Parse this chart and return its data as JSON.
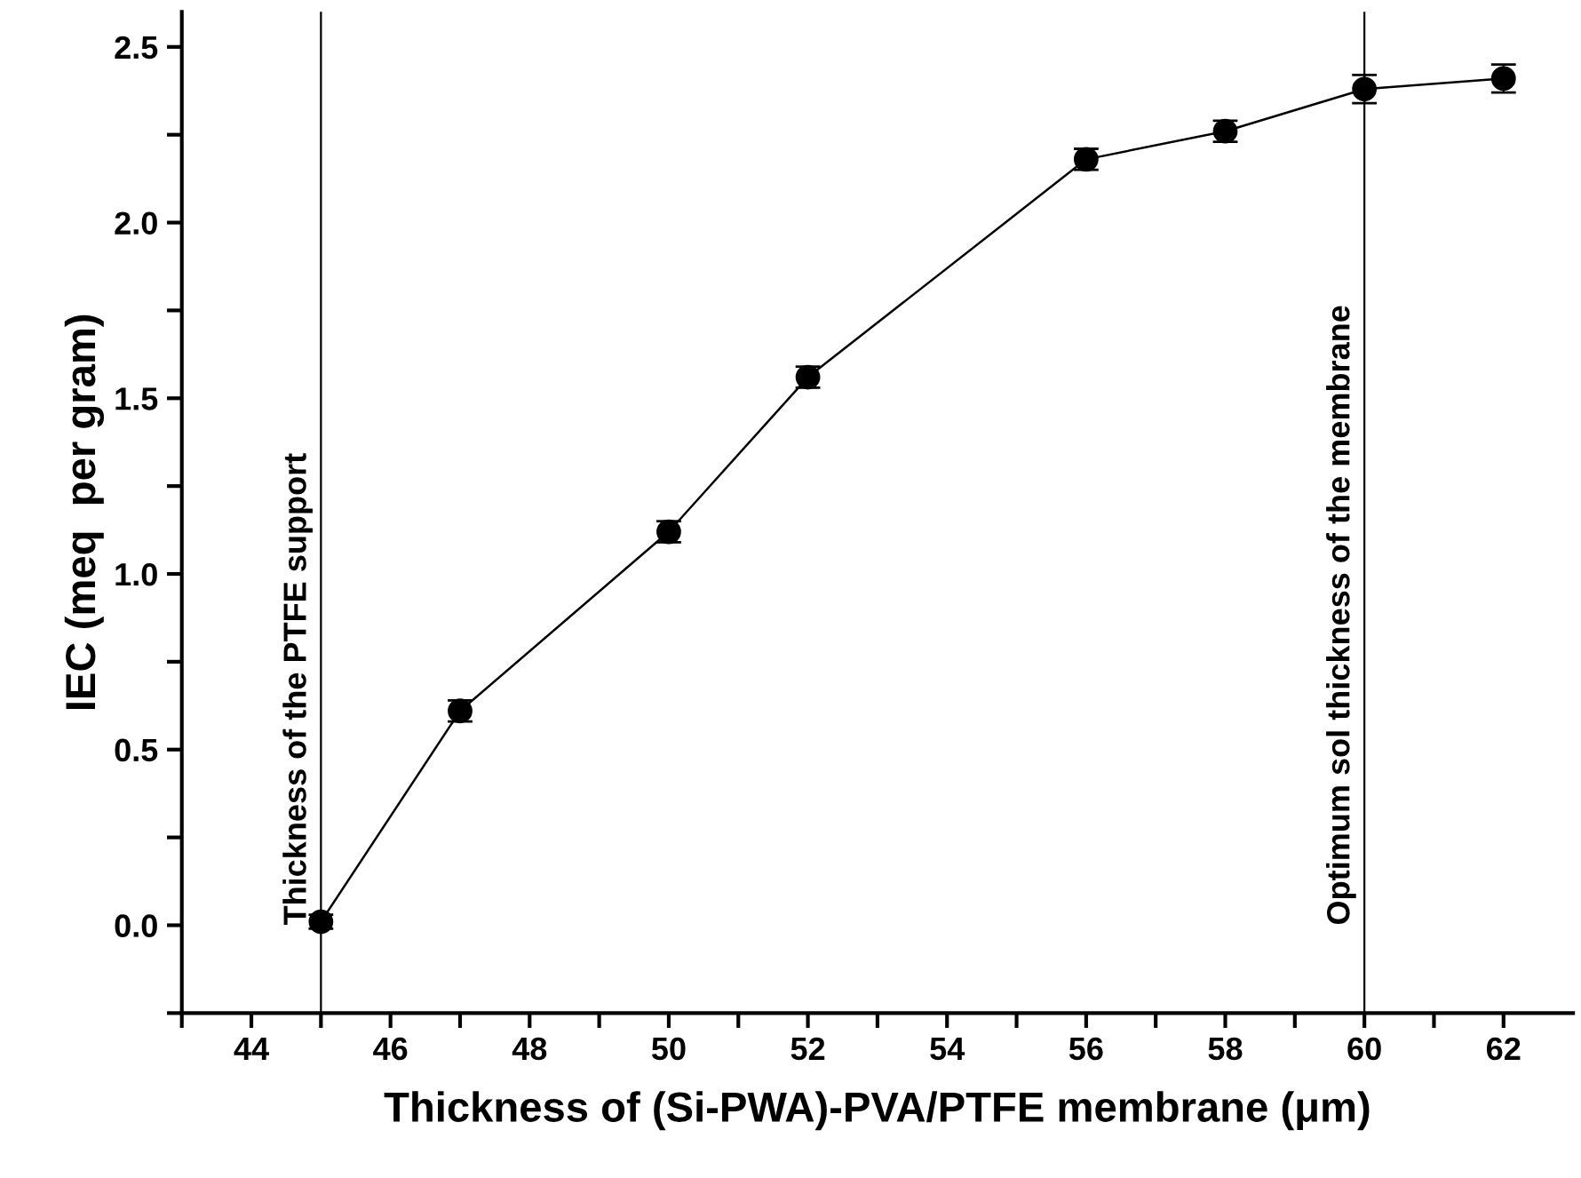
{
  "chart_data": {
    "type": "line",
    "xlabel": "Thickness of (Si-PWA)-PVA/PTFE membrane (μm)",
    "ylabel": "IEC (meq  per gram)",
    "x": [
      45,
      47,
      50,
      52,
      56,
      58,
      60,
      62
    ],
    "series": [
      {
        "color": "#000000",
        "values": [
          0.01,
          0.61,
          1.12,
          1.56,
          2.18,
          2.26,
          2.38,
          2.41
        ],
        "errors": [
          0.02,
          0.03,
          0.03,
          0.03,
          0.03,
          0.03,
          0.04,
          0.04
        ]
      }
    ],
    "marker": "circle",
    "line_style": "solid",
    "grid": false,
    "legend": false,
    "xlim": [
      43,
      63
    ],
    "ylim": [
      -0.25,
      2.6
    ],
    "xticks": [
      {
        "value": 43,
        "label": null
      },
      44,
      {
        "value": 45,
        "label": null
      },
      46,
      {
        "value": 47,
        "label": null
      },
      48,
      {
        "value": 49,
        "label": null
      },
      50,
      {
        "value": 51,
        "label": null
      },
      52,
      {
        "value": 53,
        "label": null
      },
      54,
      {
        "value": 55,
        "label": null
      },
      56,
      {
        "value": 57,
        "label": null
      },
      58,
      {
        "value": 59,
        "label": null
      },
      60,
      {
        "value": 61,
        "label": null
      },
      62
    ],
    "yticks": [
      {
        "value": -0.25,
        "label": null
      },
      {
        "value": 0,
        "label": "0.0"
      },
      {
        "value": 0.25,
        "label": null
      },
      0.5,
      {
        "value": 0.75,
        "label": null
      },
      {
        "value": 1,
        "label": "1.0"
      },
      {
        "value": 1.25,
        "label": null
      },
      1.5,
      {
        "value": 1.75,
        "label": null
      },
      {
        "value": 2,
        "label": "2.0"
      },
      {
        "value": 2.25,
        "label": null
      },
      2.5
    ],
    "ref_lines": [
      {
        "axis": "x",
        "value": 45,
        "label": "Thickness of the PTFE support",
        "color": "#000000"
      },
      {
        "axis": "x",
        "value": 60,
        "label": "Optimum sol thickness of the membrane",
        "color": "#000000"
      }
    ]
  }
}
